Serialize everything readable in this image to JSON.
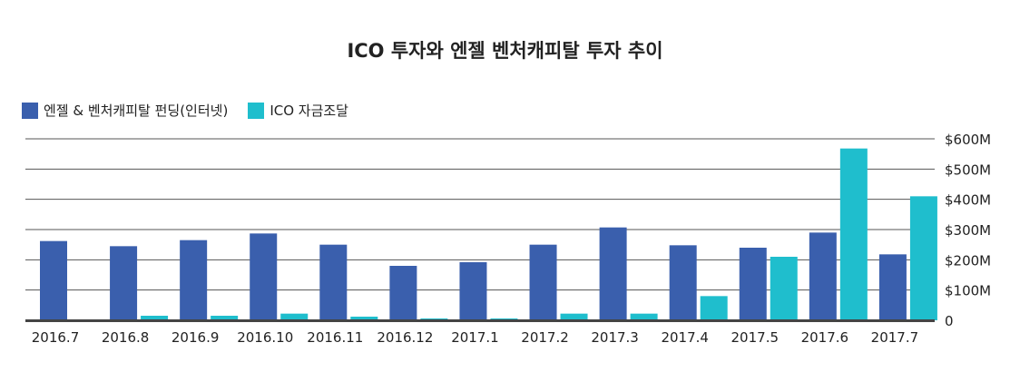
{
  "chart_data": {
    "type": "bar",
    "title": "ICO 투자와 엔젤 벤처캐피탈 투자 추이",
    "categories": [
      "2016.7",
      "2016.8",
      "2016.9",
      "2016.10",
      "2016.11",
      "2016.12",
      "2017.1",
      "2017.2",
      "2017.3",
      "2017.4",
      "2017.5",
      "2017.6",
      "2017.7"
    ],
    "series": [
      {
        "name": "엔젤 & 벤처캐피탈 펀딩(인터넷)",
        "color": "#3a5fad",
        "values": [
          262,
          245,
          265,
          287,
          250,
          180,
          192,
          250,
          307,
          248,
          240,
          290,
          218
        ]
      },
      {
        "name": "ICO 자금조달",
        "color": "#1fbecd",
        "values": [
          0,
          15,
          15,
          22,
          12,
          6,
          6,
          22,
          22,
          80,
          210,
          568,
          410
        ]
      }
    ],
    "ylim": [
      0,
      600
    ],
    "yticks": [
      0,
      100,
      200,
      300,
      400,
      500,
      600
    ],
    "ytick_labels": [
      "0",
      "$100M",
      "$200M",
      "$300M",
      "$400M",
      "$500M",
      "$600M"
    ],
    "legend_position": "top-left",
    "grid": true
  }
}
